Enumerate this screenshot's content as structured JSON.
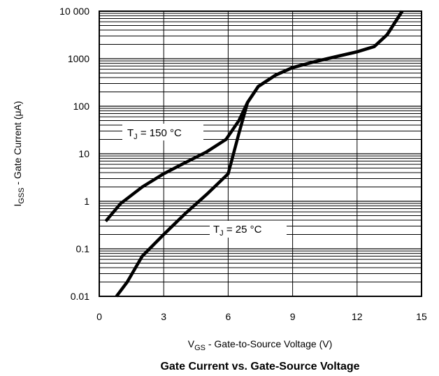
{
  "chart_data": {
    "type": "line",
    "title": "Gate Current vs. Gate-Source Voltage",
    "xlabel": {
      "main": "V",
      "sub": "GS",
      "rest": " - Gate-to-Source Voltage (V)"
    },
    "ylabel": {
      "main": "I",
      "sub": "GSS",
      "rest": " - Gate Current (μA)"
    },
    "xlim": [
      0,
      15
    ],
    "ylim": [
      0.01,
      10000
    ],
    "yscale": "log",
    "grid": true,
    "x_ticks": [
      "0",
      "3",
      "6",
      "9",
      "12",
      "15"
    ],
    "y_ticks": [
      "0.01",
      "0.1",
      "1",
      "10",
      "100",
      "1000",
      "10 000"
    ],
    "series": [
      {
        "name": "T_J = 150 °C",
        "label": {
          "main": "T",
          "sub": "J",
          "rest": " = 150 °C"
        },
        "points": [
          [
            0.3,
            0.38
          ],
          [
            1.0,
            0.9
          ],
          [
            2.0,
            2.0
          ],
          [
            3.0,
            3.8
          ],
          [
            4.0,
            6.5
          ],
          [
            5.0,
            11
          ],
          [
            5.9,
            20
          ],
          [
            6.5,
            50
          ],
          [
            6.9,
            120
          ],
          [
            7.4,
            260
          ],
          [
            8.2,
            450
          ],
          [
            9.0,
            650
          ],
          [
            10.0,
            860
          ],
          [
            11.0,
            1100
          ],
          [
            12.0,
            1400
          ],
          [
            12.8,
            1800
          ],
          [
            13.4,
            3200
          ],
          [
            14.1,
            10000
          ]
        ]
      },
      {
        "name": "T_J = 25 °C",
        "label": {
          "main": "T",
          "sub": "J",
          "rest": " = 25 °C"
        },
        "points": [
          [
            0.8,
            0.01
          ],
          [
            1.3,
            0.02
          ],
          [
            2.0,
            0.07
          ],
          [
            3.0,
            0.2
          ],
          [
            4.0,
            0.55
          ],
          [
            5.0,
            1.4
          ],
          [
            6.0,
            3.8
          ],
          [
            6.5,
            27
          ],
          [
            6.9,
            120
          ],
          [
            7.4,
            260
          ],
          [
            8.2,
            450
          ],
          [
            9.0,
            650
          ],
          [
            10.0,
            860
          ],
          [
            11.0,
            1100
          ],
          [
            12.0,
            1400
          ],
          [
            12.8,
            1800
          ],
          [
            13.4,
            3200
          ],
          [
            14.1,
            10000
          ]
        ]
      }
    ]
  }
}
